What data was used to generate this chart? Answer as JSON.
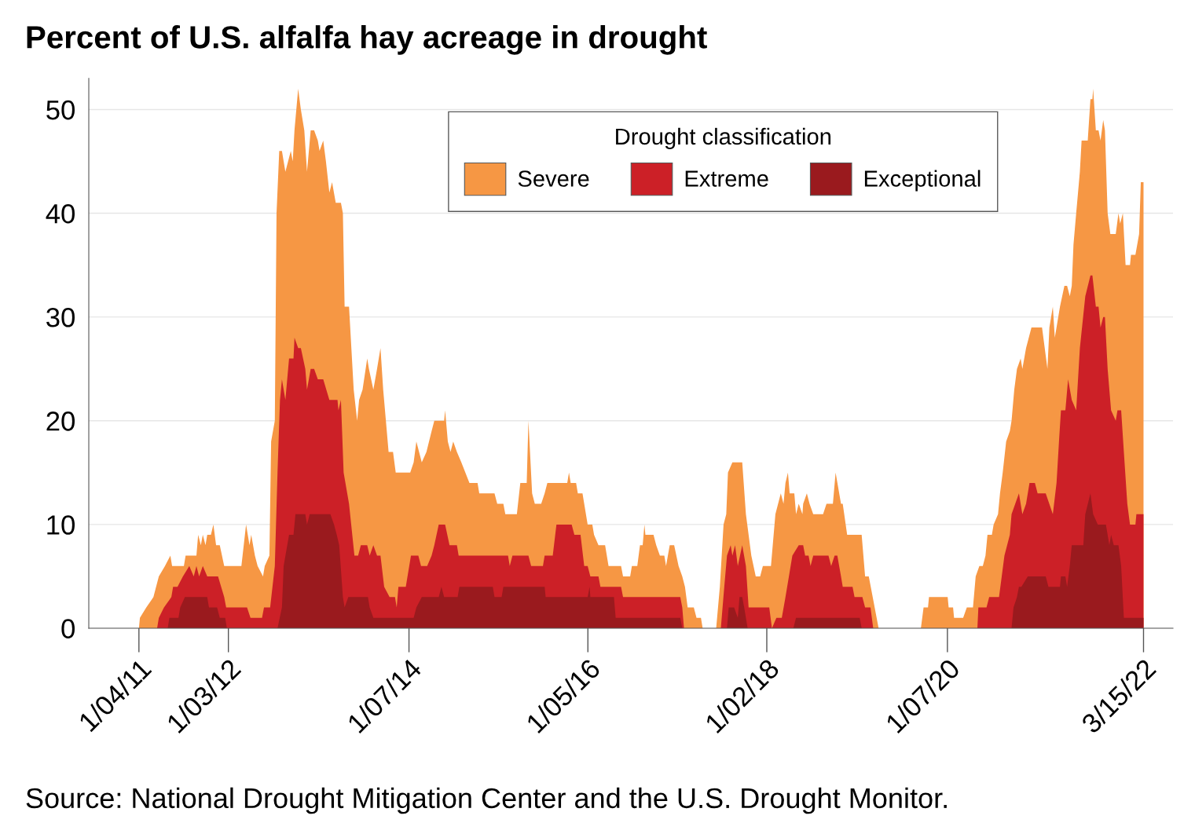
{
  "chart_data": {
    "type": "area",
    "title": "Percent of U.S. alfalfa hay acreage in drought",
    "legend_title": "Drought classification",
    "annotations": [
      "Source: National Drought Mitigation Center and the U.S. Drought Monitor."
    ],
    "xlim": [
      "2010-06-14",
      "2022-07-13"
    ],
    "xticks": [
      {
        "value": "2011-01-04",
        "label": "1/04/11"
      },
      {
        "value": "2012-01-03",
        "label": "1/03/12"
      },
      {
        "value": "2014-01-07",
        "label": "1/07/14"
      },
      {
        "value": "2016-01-05",
        "label": "1/05/16"
      },
      {
        "value": "2018-01-02",
        "label": "1/02/18"
      },
      {
        "value": "2020-01-07",
        "label": "1/07/20"
      },
      {
        "value": "2022-03-15",
        "label": "3/15/22"
      }
    ],
    "ylim": [
      0,
      53
    ],
    "yticks": [
      0,
      10,
      20,
      30,
      40,
      50
    ],
    "grid": "y",
    "legend": "top",
    "series": [
      {
        "name": "Severe",
        "color": "#f69744",
        "x": [
          "2011-01-04",
          "2011-01-08",
          "2011-02-03",
          "2011-03-04",
          "2011-03-26",
          "2011-04-20",
          "2011-05-12",
          "2011-05-19",
          "2011-07-06",
          "2011-07-13",
          "2011-08-26",
          "2011-09-02",
          "2011-09-13",
          "2011-09-21",
          "2011-10-02",
          "2011-10-09",
          "2011-10-24",
          "2011-11-03",
          "2011-11-14",
          "2011-11-29",
          "2011-12-17",
          "2012-02-25",
          "2012-03-15",
          "2012-03-29",
          "2012-04-05",
          "2012-04-20",
          "2012-05-01",
          "2012-05-23",
          "2012-05-30",
          "2012-06-18",
          "2012-06-25",
          "2012-07-10",
          "2012-07-17",
          "2012-07-28",
          "2012-08-08",
          "2012-08-22",
          "2012-09-13",
          "2012-09-21",
          "2012-09-28",
          "2012-10-13",
          "2012-10-24",
          "2012-11-07",
          "2012-11-18",
          "2012-12-03",
          "2012-12-17",
          "2013-01-01",
          "2013-01-08",
          "2013-01-23",
          "2013-02-03",
          "2013-02-17",
          "2013-02-28",
          "2013-03-15",
          "2013-04-05",
          "2013-04-13",
          "2013-04-20",
          "2013-05-08",
          "2013-05-27",
          "2013-06-10",
          "2013-06-18",
          "2013-07-02",
          "2013-07-21",
          "2013-07-28",
          "2013-08-15",
          "2013-08-30",
          "2013-09-13",
          "2013-09-24",
          "2013-10-16",
          "2013-11-03",
          "2013-11-14",
          "2014-01-12",
          "2014-01-26",
          "2014-02-06",
          "2014-02-28",
          "2014-03-19",
          "2014-04-09",
          "2014-04-20",
          "2014-05-30",
          "2014-06-03",
          "2014-06-14",
          "2014-06-25",
          "2014-07-06",
          "2014-07-21",
          "2014-08-08",
          "2014-09-10",
          "2014-10-13",
          "2014-10-20",
          "2014-12-21",
          "2015-01-01",
          "2015-01-26",
          "2015-02-03",
          "2015-03-22",
          "2015-04-05",
          "2015-05-01",
          "2015-05-08",
          "2015-05-23",
          "2015-06-03",
          "2015-06-29",
          "2015-07-13",
          "2015-07-24",
          "2015-10-13",
          "2015-10-20",
          "2015-10-27",
          "2015-11-18",
          "2015-11-25",
          "2015-12-14",
          "2016-01-04",
          "2016-01-23",
          "2016-01-30",
          "2016-02-17",
          "2016-03-15",
          "2016-03-29",
          "2016-05-19",
          "2016-05-27",
          "2016-06-25",
          "2016-07-02",
          "2016-07-24",
          "2016-08-04",
          "2016-08-15",
          "2016-08-22",
          "2016-08-26",
          "2016-09-28",
          "2016-10-09",
          "2016-10-24",
          "2016-11-11",
          "2016-11-18",
          "2016-12-03",
          "2016-12-21",
          "2017-01-08",
          "2017-01-23",
          "2017-02-03",
          "2017-02-14",
          "2017-03-11",
          "2017-03-22",
          "2017-04-09",
          "2017-04-16",
          "2017-06-10",
          "2017-06-25",
          "2017-07-10",
          "2017-07-21",
          "2017-07-28",
          "2017-08-15",
          "2017-09-24",
          "2017-10-09",
          "2017-10-31",
          "2017-11-18",
          "2017-12-06",
          "2017-12-17",
          "2018-01-19",
          "2018-02-06",
          "2018-02-17",
          "2018-02-28",
          "2018-03-11",
          "2018-03-19",
          "2018-03-29",
          "2018-04-05",
          "2018-04-24",
          "2018-05-01",
          "2018-05-12",
          "2018-05-27",
          "2018-05-30",
          "2018-06-14",
          "2018-06-25",
          "2018-07-10",
          "2018-08-19",
          "2018-09-02",
          "2018-09-28",
          "2018-10-09",
          "2018-10-31",
          "2018-11-07",
          "2018-11-25",
          "2019-01-23",
          "2019-02-06",
          "2019-02-21",
          "2019-04-02",
          "2019-09-21",
          "2019-10-02",
          "2019-10-20",
          "2019-10-24",
          "2020-01-08",
          "2020-01-12",
          "2020-01-30",
          "2020-02-03",
          "2020-03-11",
          "2020-03-26",
          "2020-04-20",
          "2020-05-01",
          "2020-05-16",
          "2020-05-30",
          "2020-06-10",
          "2020-06-18",
          "2020-07-06",
          "2020-07-13",
          "2020-07-31",
          "2020-08-08",
          "2020-08-19",
          "2020-09-02",
          "2020-09-17",
          "2020-09-24",
          "2020-10-05",
          "2020-10-16",
          "2020-10-31",
          "2020-11-07",
          "2020-11-22",
          "2020-12-14",
          "2021-01-26",
          "2021-02-06",
          "2021-02-17",
          "2021-02-25",
          "2021-03-11",
          "2021-03-19",
          "2021-03-26",
          "2021-04-09",
          "2021-04-27",
          "2021-05-08",
          "2021-05-19",
          "2021-05-27",
          "2021-06-03",
          "2021-06-14",
          "2021-06-29",
          "2021-07-06",
          "2021-07-31",
          "2021-08-11",
          "2021-08-19",
          "2021-08-22",
          "2021-09-02",
          "2021-09-13",
          "2021-09-21",
          "2021-10-02",
          "2021-10-09",
          "2021-10-20",
          "2021-10-31",
          "2021-11-22",
          "2021-12-03",
          "2021-12-10",
          "2021-12-21",
          "2022-01-01",
          "2022-01-19",
          "2022-01-23",
          "2022-02-10",
          "2022-02-25",
          "2022-03-04",
          "2022-03-15"
        ],
        "values": [
          0,
          1,
          2,
          3,
          5,
          6,
          7,
          6,
          6,
          7,
          7,
          9,
          8,
          9,
          8,
          9,
          9,
          10,
          8,
          8,
          6,
          6,
          10,
          8,
          9,
          7,
          6,
          5,
          6,
          7,
          18,
          20,
          40,
          46,
          46,
          44,
          46,
          45,
          48,
          52,
          50,
          48,
          44,
          48,
          48,
          47,
          46,
          47,
          45,
          42,
          43,
          41,
          41,
          40,
          31,
          31,
          23,
          20,
          22,
          23,
          26,
          25,
          23,
          25,
          27,
          23,
          17,
          17,
          15,
          15,
          16,
          18,
          16,
          17,
          19,
          20,
          20,
          21,
          18,
          17,
          18,
          17,
          16,
          14,
          14,
          13,
          13,
          12,
          12,
          11,
          11,
          14,
          14,
          20,
          13,
          12,
          12,
          13,
          14,
          14,
          15,
          14,
          14,
          13,
          13,
          10,
          10,
          9,
          8,
          8,
          6,
          6,
          5,
          5,
          6,
          6,
          8,
          8,
          10,
          9,
          9,
          8,
          7,
          7,
          6,
          8,
          8,
          6,
          5,
          4,
          2,
          2,
          1,
          1,
          0,
          0,
          4,
          10,
          11,
          15,
          16,
          16,
          11,
          7,
          5,
          5,
          6,
          6,
          11,
          12,
          13,
          12,
          14,
          15,
          13,
          13,
          11,
          12,
          11,
          12,
          13,
          12,
          11,
          11,
          12,
          12,
          15,
          12,
          12,
          9,
          9,
          5,
          5,
          0,
          0,
          2,
          2,
          3,
          3,
          2,
          2,
          1,
          1,
          2,
          2,
          5,
          6,
          6,
          7,
          9,
          9,
          10,
          11,
          13,
          15,
          18,
          19,
          20,
          23,
          25,
          26,
          25,
          27,
          29,
          29,
          27,
          25,
          29,
          31,
          28,
          29,
          31,
          33,
          33,
          32,
          33,
          37,
          40,
          44,
          47,
          47,
          51,
          51,
          52,
          48,
          48,
          47,
          49,
          48,
          40,
          38,
          38,
          40,
          39,
          40,
          35,
          35,
          36,
          36,
          38,
          43,
          43
        ]
      },
      {
        "name": "Extreme",
        "color": "#cc2027",
        "x": [
          "2011-03-19",
          "2011-03-26",
          "2011-04-16",
          "2011-05-16",
          "2011-05-23",
          "2011-06-10",
          "2011-07-02",
          "2011-07-28",
          "2011-08-15",
          "2011-08-26",
          "2011-09-06",
          "2011-09-21",
          "2011-10-09",
          "2011-11-22",
          "2011-12-17",
          "2011-12-25",
          "2012-03-19",
          "2012-04-02",
          "2012-05-19",
          "2012-05-27",
          "2012-06-21",
          "2012-07-10",
          "2012-07-21",
          "2012-07-31",
          "2012-08-08",
          "2012-08-22",
          "2012-09-06",
          "2012-09-24",
          "2012-09-28",
          "2012-10-13",
          "2012-10-24",
          "2012-11-11",
          "2012-11-18",
          "2012-12-03",
          "2012-12-17",
          "2013-01-01",
          "2013-01-23",
          "2013-02-17",
          "2013-03-22",
          "2013-03-26",
          "2013-04-05",
          "2013-04-16",
          "2013-05-08",
          "2013-05-30",
          "2013-06-14",
          "2013-06-25",
          "2013-07-21",
          "2013-07-31",
          "2013-08-15",
          "2013-08-30",
          "2013-09-13",
          "2013-09-28",
          "2013-10-20",
          "2013-11-11",
          "2013-11-18",
          "2013-11-25",
          "2013-12-25",
          "2014-01-15",
          "2014-02-14",
          "2014-02-25",
          "2014-03-22",
          "2014-04-09",
          "2014-04-20",
          "2014-05-08",
          "2014-06-03",
          "2014-06-21",
          "2014-07-21",
          "2014-07-28",
          "2015-02-14",
          "2015-02-21",
          "2015-03-04",
          "2015-05-08",
          "2015-05-19",
          "2015-07-06",
          "2015-07-13",
          "2015-08-15",
          "2015-08-30",
          "2015-10-31",
          "2015-11-11",
          "2015-12-06",
          "2015-12-21",
          "2016-01-04",
          "2016-01-15",
          "2016-02-17",
          "2016-02-25",
          "2016-05-19",
          "2016-05-27",
          "2017-01-15",
          "2017-01-23",
          "2017-01-30",
          "2017-06-29",
          "2017-07-13",
          "2017-07-24",
          "2017-08-08",
          "2017-08-15",
          "2017-08-26",
          "2017-09-06",
          "2017-09-24",
          "2017-10-09",
          "2017-10-20",
          "2018-01-12",
          "2018-01-23",
          "2018-02-10",
          "2018-03-04",
          "2018-03-19",
          "2018-04-02",
          "2018-04-16",
          "2018-05-12",
          "2018-05-30",
          "2018-06-07",
          "2018-06-21",
          "2018-06-29",
          "2018-07-10",
          "2018-09-10",
          "2018-09-21",
          "2018-10-05",
          "2018-10-16",
          "2018-10-31",
          "2018-11-07",
          "2018-12-17",
          "2018-12-25",
          "2019-01-26",
          "2019-02-06",
          "2019-02-28",
          "2019-03-11",
          "2020-05-08",
          "2020-05-12",
          "2020-06-14",
          "2020-06-25",
          "2020-08-04",
          "2020-08-15",
          "2020-08-26",
          "2020-09-17",
          "2020-09-24",
          "2020-10-09",
          "2020-10-24",
          "2020-11-07",
          "2020-11-22",
          "2020-12-06",
          "2020-12-28",
          "2021-01-08",
          "2021-02-10",
          "2021-03-11",
          "2021-03-26",
          "2021-04-05",
          "2021-04-13",
          "2021-05-01",
          "2021-05-12",
          "2021-05-27",
          "2021-06-14",
          "2021-06-29",
          "2021-07-21",
          "2021-08-11",
          "2021-08-19",
          "2021-09-02",
          "2021-09-13",
          "2021-09-21",
          "2021-10-02",
          "2021-10-09",
          "2021-10-20",
          "2021-11-03",
          "2021-11-22",
          "2021-11-29",
          "2021-12-14",
          "2021-12-25",
          "2022-01-08",
          "2022-01-19",
          "2022-02-10",
          "2022-02-14",
          "2022-03-15"
        ],
        "values": [
          0,
          1,
          2,
          3,
          4,
          4,
          5,
          6,
          5,
          6,
          5,
          6,
          5,
          5,
          3,
          2,
          2,
          1,
          1,
          2,
          2,
          6,
          15,
          22,
          24,
          22,
          26,
          26,
          28,
          27,
          27,
          25,
          23,
          25,
          25,
          24,
          24,
          22,
          22,
          21,
          22,
          15,
          12,
          7,
          7,
          8,
          8,
          7,
          8,
          7,
          7,
          4,
          3,
          3,
          2,
          4,
          4,
          7,
          7,
          6,
          6,
          7,
          8,
          10,
          10,
          8,
          8,
          7,
          7,
          6,
          7,
          7,
          6,
          6,
          7,
          7,
          10,
          10,
          9,
          9,
          6,
          6,
          5,
          5,
          4,
          4,
          3,
          3,
          2,
          0,
          0,
          4,
          7,
          8,
          7,
          8,
          6,
          8,
          6,
          2,
          2,
          0,
          1,
          1,
          3,
          5,
          7,
          8,
          8,
          7,
          7,
          6,
          7,
          7,
          6,
          7,
          7,
          5,
          4,
          4,
          3,
          3,
          2,
          2,
          0,
          0,
          2,
          2,
          3,
          3,
          5,
          7,
          9,
          11,
          12,
          13,
          11,
          12,
          14,
          14,
          13,
          13,
          11,
          14,
          18,
          21,
          21,
          24,
          22,
          21,
          27,
          32,
          34,
          34,
          31,
          31,
          29,
          30,
          30,
          25,
          21,
          20,
          21,
          21,
          17,
          12,
          10,
          10,
          11,
          11
        ]
      },
      {
        "name": "Exceptional",
        "color": "#9a1a1e",
        "x": [
          "2011-05-01",
          "2011-05-08",
          "2011-06-14",
          "2011-06-21",
          "2011-07-10",
          "2011-10-09",
          "2011-10-16",
          "2011-11-18",
          "2011-11-29",
          "2011-12-21",
          "2011-12-28",
          "2012-07-21",
          "2012-08-08",
          "2012-08-15",
          "2012-09-06",
          "2012-09-24",
          "2012-10-02",
          "2012-11-11",
          "2012-11-18",
          "2012-11-29",
          "2013-02-21",
          "2013-03-08",
          "2013-03-19",
          "2013-03-29",
          "2013-04-13",
          "2013-04-20",
          "2013-05-05",
          "2013-07-24",
          "2013-07-31",
          "2013-08-15",
          "2014-01-26",
          "2014-02-06",
          "2014-02-28",
          "2014-05-08",
          "2014-05-19",
          "2014-05-30",
          "2014-07-24",
          "2014-07-31",
          "2014-12-14",
          "2014-12-21",
          "2015-01-19",
          "2015-01-26",
          "2015-07-13",
          "2015-07-17",
          "2016-01-04",
          "2016-01-12",
          "2016-01-15",
          "2016-04-20",
          "2016-04-27",
          "2017-01-15",
          "2017-01-23",
          "2017-07-24",
          "2017-07-31",
          "2017-08-22",
          "2017-09-06",
          "2017-09-13",
          "2017-09-24",
          "2017-10-02",
          "2017-10-16",
          "2018-04-20",
          "2018-05-01",
          "2019-01-15",
          "2019-01-23",
          "2020-09-24",
          "2020-10-02",
          "2020-10-16",
          "2020-10-24",
          "2020-11-03",
          "2020-11-29",
          "2021-02-10",
          "2021-02-21",
          "2021-04-09",
          "2021-04-13",
          "2021-05-01",
          "2021-05-08",
          "2021-05-19",
          "2021-05-27",
          "2021-07-13",
          "2021-07-21",
          "2021-08-11",
          "2021-08-22",
          "2021-09-10",
          "2021-10-13",
          "2021-10-27",
          "2021-11-03",
          "2021-11-14",
          "2021-12-03",
          "2021-12-14",
          "2021-12-25",
          "2022-03-15"
        ],
        "values": [
          0,
          1,
          1,
          2,
          3,
          3,
          2,
          2,
          1,
          1,
          0,
          0,
          2,
          6,
          9,
          9,
          11,
          11,
          10,
          11,
          11,
          10,
          9,
          8,
          3,
          2,
          3,
          3,
          2,
          1,
          1,
          2,
          3,
          3,
          4,
          3,
          3,
          4,
          4,
          3,
          3,
          4,
          4,
          3,
          3,
          4,
          3,
          3,
          1,
          1,
          0,
          0,
          2,
          2,
          1,
          3,
          3,
          2,
          0,
          0,
          1,
          1,
          0,
          0,
          2,
          3,
          4,
          4,
          5,
          5,
          4,
          4,
          5,
          5,
          4,
          6,
          8,
          8,
          11,
          13,
          11,
          10,
          10,
          8,
          9,
          8,
          8,
          6,
          1,
          1
        ]
      }
    ]
  }
}
